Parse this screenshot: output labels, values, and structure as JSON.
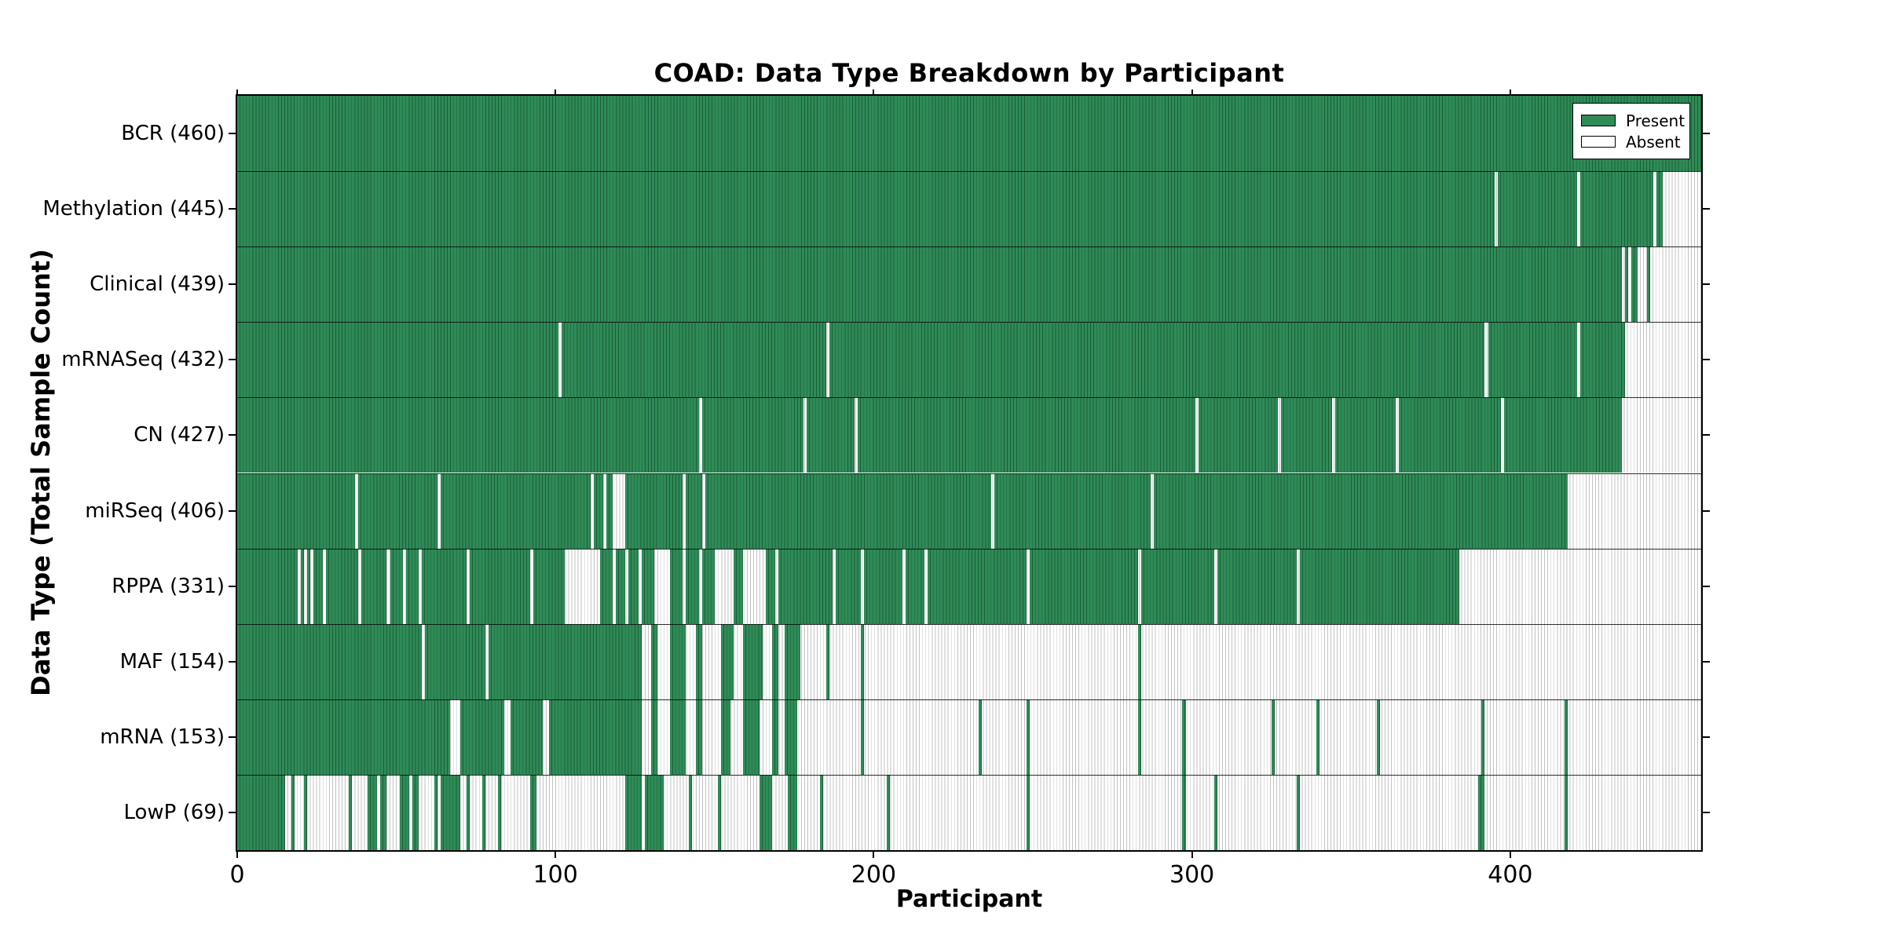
{
  "chart_data": {
    "type": "heatmap",
    "title": "COAD: Data Type Breakdown by Participant",
    "xlabel": "Participant",
    "ylabel": "Data Type (Total Sample Count)",
    "x_ticks": [
      0,
      100,
      200,
      300,
      400
    ],
    "x_max": 460,
    "grid": false,
    "legend_position": "upper-right-inside",
    "legend": {
      "present": "Present",
      "absent": "Absent"
    },
    "colors": {
      "present": "#2e8b57",
      "present_line": "#1d5c38",
      "absent": "#ffffff",
      "absent_line": "#c2c2c2",
      "frame": "#000000"
    },
    "rows": [
      {
        "name": "bcr",
        "label": "BCR (460)",
        "count": 460,
        "present": [
          [
            0,
            460
          ]
        ]
      },
      {
        "name": "methylation",
        "label": "Methylation (445)",
        "count": 445,
        "present": [
          [
            0,
            395
          ],
          [
            396,
            421
          ],
          [
            422,
            445
          ],
          [
            446,
            448
          ]
        ]
      },
      {
        "name": "clinical",
        "label": "Clinical (439)",
        "count": 439,
        "present": [
          [
            0,
            435
          ],
          [
            436,
            437
          ],
          [
            438,
            440
          ],
          [
            443,
            444
          ]
        ]
      },
      {
        "name": "mrnaseq",
        "label": "mRNASeq (432)",
        "count": 432,
        "present": [
          [
            0,
            101
          ],
          [
            102,
            185
          ],
          [
            186,
            392
          ],
          [
            393,
            421
          ],
          [
            422,
            436
          ]
        ]
      },
      {
        "name": "cn",
        "label": "CN (427)",
        "count": 427,
        "present": [
          [
            0,
            145
          ],
          [
            146,
            178
          ],
          [
            179,
            194
          ],
          [
            195,
            301
          ],
          [
            302,
            327
          ],
          [
            328,
            344
          ],
          [
            345,
            364
          ],
          [
            365,
            397
          ],
          [
            398,
            435
          ]
        ]
      },
      {
        "name": "mirseq",
        "label": "miRSeq (406)",
        "count": 406,
        "present": [
          [
            0,
            37
          ],
          [
            38,
            63
          ],
          [
            64,
            111
          ],
          [
            112,
            115
          ],
          [
            116,
            118
          ],
          [
            122,
            140
          ],
          [
            141,
            146
          ],
          [
            147,
            237
          ],
          [
            238,
            287
          ],
          [
            288,
            418
          ]
        ]
      },
      {
        "name": "rppa",
        "label": "RPPA (331)",
        "count": 331,
        "present": [
          [
            0,
            19
          ],
          [
            20,
            21
          ],
          [
            22,
            23
          ],
          [
            24,
            27
          ],
          [
            28,
            38
          ],
          [
            39,
            47
          ],
          [
            48,
            52
          ],
          [
            53,
            57
          ],
          [
            58,
            72
          ],
          [
            73,
            92
          ],
          [
            93,
            103
          ],
          [
            114,
            118
          ],
          [
            119,
            122
          ],
          [
            123,
            126
          ],
          [
            127,
            131
          ],
          [
            136,
            140
          ],
          [
            141,
            145
          ],
          [
            146,
            150
          ],
          [
            156,
            159
          ],
          [
            166,
            169
          ],
          [
            170,
            187
          ],
          [
            188,
            196
          ],
          [
            197,
            209
          ],
          [
            210,
            216
          ],
          [
            217,
            248
          ],
          [
            249,
            283
          ],
          [
            284,
            307
          ],
          [
            308,
            333
          ],
          [
            334,
            384
          ]
        ]
      },
      {
        "name": "maf",
        "label": "MAF (154)",
        "count": 154,
        "present": [
          [
            0,
            58
          ],
          [
            59,
            78
          ],
          [
            79,
            127
          ],
          [
            130,
            132
          ],
          [
            136,
            141
          ],
          [
            144,
            146
          ],
          [
            152,
            156
          ],
          [
            159,
            165
          ],
          [
            168,
            170
          ],
          [
            172,
            177
          ],
          [
            185,
            186
          ],
          [
            196,
            197
          ],
          [
            283,
            284
          ]
        ]
      },
      {
        "name": "mrna",
        "label": "mRNA (153)",
        "count": 153,
        "present": [
          [
            0,
            67
          ],
          [
            70,
            84
          ],
          [
            86,
            96
          ],
          [
            98,
            127
          ],
          [
            130,
            132
          ],
          [
            136,
            141
          ],
          [
            144,
            146
          ],
          [
            152,
            155
          ],
          [
            159,
            164
          ],
          [
            168,
            170
          ],
          [
            172,
            176
          ],
          [
            196,
            197
          ],
          [
            233,
            234
          ],
          [
            248,
            249
          ],
          [
            283,
            284
          ],
          [
            297,
            298
          ],
          [
            325,
            326
          ],
          [
            339,
            340
          ],
          [
            358,
            359
          ],
          [
            391,
            392
          ],
          [
            417,
            418
          ]
        ]
      },
      {
        "name": "lowp",
        "label": "LowP (69)",
        "count": 69,
        "present": [
          [
            0,
            15
          ],
          [
            17,
            18
          ],
          [
            21,
            22
          ],
          [
            35,
            36
          ],
          [
            41,
            44
          ],
          [
            45,
            47
          ],
          [
            51,
            54
          ],
          [
            55,
            57
          ],
          [
            62,
            63
          ],
          [
            64,
            70
          ],
          [
            72,
            73
          ],
          [
            77,
            78
          ],
          [
            82,
            83
          ],
          [
            92,
            94
          ],
          [
            122,
            127
          ],
          [
            128,
            134
          ],
          [
            142,
            143
          ],
          [
            151,
            152
          ],
          [
            164,
            168
          ],
          [
            173,
            176
          ],
          [
            183,
            184
          ],
          [
            204,
            205
          ],
          [
            248,
            249
          ],
          [
            297,
            298
          ],
          [
            307,
            308
          ],
          [
            333,
            334
          ],
          [
            390,
            392
          ],
          [
            417,
            418
          ]
        ]
      }
    ]
  }
}
